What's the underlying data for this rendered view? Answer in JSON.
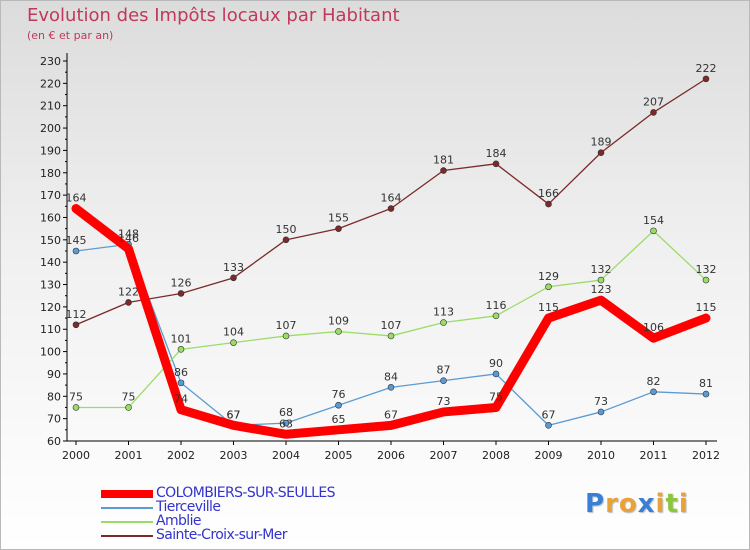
{
  "title": "Evolution des Impôts locaux par Habitant",
  "subtitle": "(en € et par an)",
  "logo": {
    "letters": [
      {
        "char": "P",
        "color": "#3a7fd5"
      },
      {
        "char": "r",
        "color": "#e8a23a"
      },
      {
        "char": "o",
        "color": "#e8a23a"
      },
      {
        "char": "x",
        "color": "#3a7fd5"
      },
      {
        "char": "i",
        "color": "#e8a23a"
      },
      {
        "char": "t",
        "color": "#8cc63f"
      },
      {
        "char": "i",
        "color": "#e8a23a"
      }
    ]
  },
  "chart_data": {
    "type": "line",
    "title": "Evolution des Impôts locaux par Habitant",
    "subtitle": "(en € et par an)",
    "xlabel": "",
    "ylabel": "",
    "categories": [
      "2000",
      "2001",
      "2002",
      "2003",
      "2004",
      "2005",
      "2006",
      "2007",
      "2008",
      "2009",
      "2010",
      "2011",
      "2012"
    ],
    "ylim": [
      60,
      230
    ],
    "yticks": [
      60,
      70,
      80,
      90,
      100,
      110,
      120,
      130,
      140,
      150,
      160,
      170,
      180,
      190,
      200,
      210,
      220,
      230
    ],
    "grid": false,
    "legend_position": "bottom-left",
    "series": [
      {
        "name": "COLOMBIERS-SUR-SEULLES",
        "color": "#ff0000",
        "label_color": "#3333cc",
        "thick": true,
        "values": [
          164,
          146,
          74,
          67,
          63,
          65,
          67,
          73,
          75,
          115,
          123,
          106,
          115
        ]
      },
      {
        "name": "Tierceville",
        "color": "#5b9bd5",
        "label_color": "#3333cc",
        "thick": false,
        "values": [
          145,
          148,
          86,
          67,
          68,
          76,
          84,
          87,
          90,
          67,
          73,
          82,
          81
        ]
      },
      {
        "name": "Amblie",
        "color": "#99dd66",
        "label_color": "#3333cc",
        "thick": false,
        "values": [
          75,
          75,
          101,
          104,
          107,
          109,
          107,
          113,
          116,
          129,
          132,
          154,
          132
        ]
      },
      {
        "name": "Sainte-Croix-sur-Mer",
        "color": "#7a2a2a",
        "label_color": "#3333cc",
        "thick": false,
        "values": [
          112,
          122,
          126,
          133,
          150,
          155,
          164,
          181,
          184,
          166,
          189,
          207,
          222
        ]
      }
    ]
  }
}
